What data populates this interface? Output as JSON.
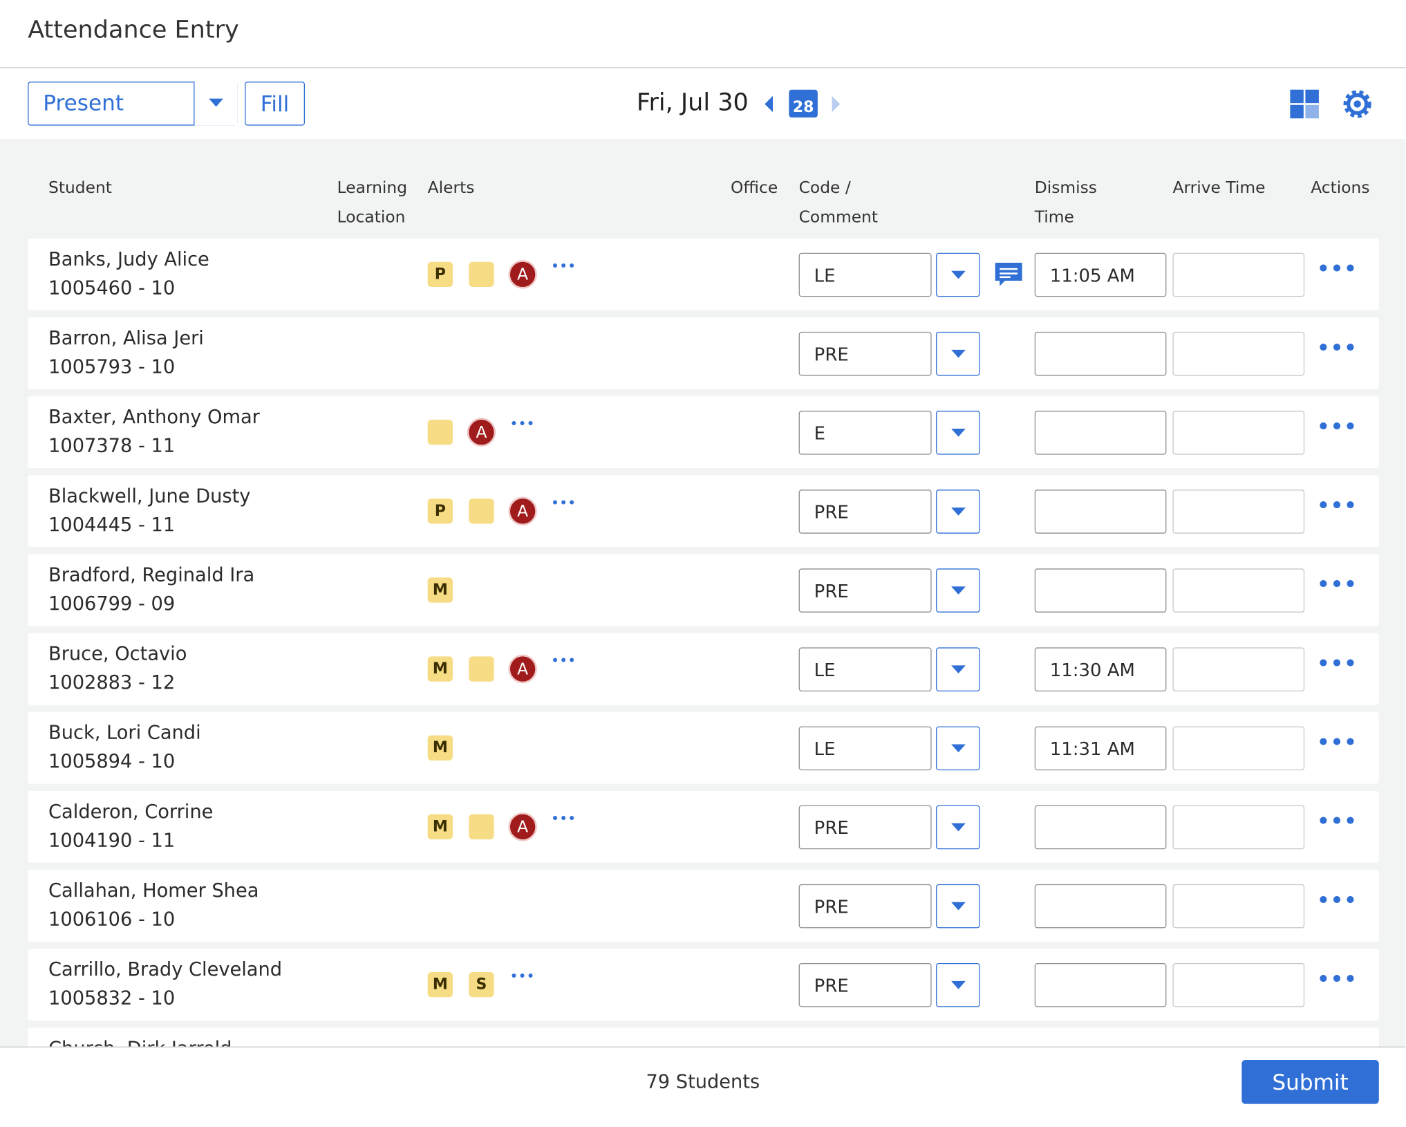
{
  "header": {
    "title": "Attendance Entry"
  },
  "toolbar": {
    "status": "Present",
    "fill": "Fill",
    "date": "Fri, Jul 30",
    "calendar_day": "28"
  },
  "columns": [
    "Student",
    "Learning Location",
    "Alerts",
    "Office",
    "Code / Comment",
    "Dismiss Time",
    "Arrive Time",
    "Actions"
  ],
  "rows": [
    {
      "name": "Banks, Judy Alice",
      "id": "1005460 - 10",
      "badges": [
        "P"
      ],
      "note": true,
      "red_badge": "A",
      "more": true,
      "code": "LE",
      "comment": true,
      "dismiss": "11:05 AM"
    },
    {
      "name": "Barron, Alisa Jeri",
      "id": "1005793 - 10",
      "badges": [],
      "note": false,
      "more": false,
      "code": "PRE",
      "comment": false
    },
    {
      "name": "Baxter, Anthony Omar",
      "id": "1007378 - 11",
      "badges": [],
      "note": true,
      "red_badge": "A",
      "more": true,
      "code": "E",
      "comment": false
    },
    {
      "name": "Blackwell, June Dusty",
      "id": "1004445 - 11",
      "badges": [
        "P"
      ],
      "note": true,
      "red_badge": "A",
      "more": true,
      "code": "PRE",
      "comment": false
    },
    {
      "name": "Bradford, Reginald Ira",
      "id": "1006799 - 09",
      "badges": [
        "M"
      ],
      "note": false,
      "more": false,
      "code": "PRE",
      "comment": false
    },
    {
      "name": "Bruce, Octavio",
      "id": "1002883 - 12",
      "badges": [
        "M"
      ],
      "note": true,
      "red_badge": "A",
      "more": true,
      "code": "LE",
      "comment": false,
      "dismiss": "11:30 AM"
    },
    {
      "name": "Buck, Lori Candi",
      "id": "1005894 - 10",
      "badges": [
        "M"
      ],
      "note": false,
      "more": false,
      "code": "LE",
      "comment": false,
      "dismiss": "11:31 AM"
    },
    {
      "name": "Calderon, Corrine",
      "id": "1004190 - 11",
      "badges": [
        "M"
      ],
      "note": true,
      "red_badge": "A",
      "more": true,
      "code": "PRE",
      "comment": false
    },
    {
      "name": "Callahan, Homer Shea",
      "id": "1006106 - 10",
      "badges": [],
      "note": false,
      "more": false,
      "code": "PRE",
      "comment": false
    },
    {
      "name": "Carrillo, Brady Cleveland",
      "id": "1005832 - 10",
      "badges": [
        "M",
        "S"
      ],
      "note": false,
      "more": true,
      "code": "PRE",
      "comment": false
    },
    {
      "name": "Church, Dirk Jarrold",
      "badges": [],
      "note": false,
      "more": false,
      "comment": false
    }
  ],
  "footer": {
    "count": "79 Students",
    "submit": "Submit"
  }
}
